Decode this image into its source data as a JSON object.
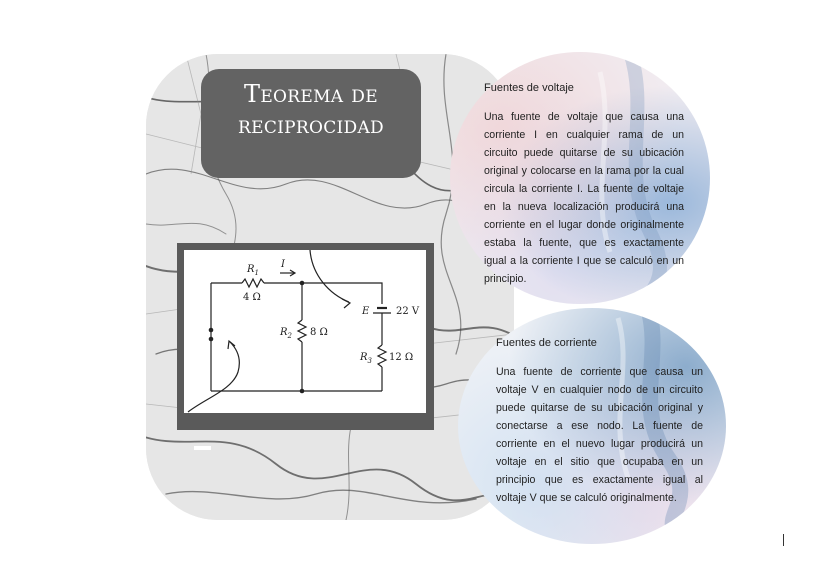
{
  "title": {
    "line1": "Teorema de",
    "line2": "reciprocidad"
  },
  "circuit": {
    "r1_label": "R",
    "r1_sub": "1",
    "r1_value": "4 Ω",
    "current_label": "I",
    "r2_label": "R",
    "r2_sub": "2",
    "r2_value": "8 Ω",
    "source_label": "E",
    "source_value": "22 V",
    "r3_label": "R",
    "r3_sub": "3",
    "r3_value": "12 Ω"
  },
  "voltage_section": {
    "heading": "Fuentes de voltaje",
    "body": "Una fuente de voltaje que causa una corriente I en cualquier rama de un circuito puede quitarse de su ubicación original y colocarse en la rama por la cual circula la corriente I. La fuente de voltaje en la nueva localización producirá una corriente en el lugar donde originalmente estaba la fuente, que es exactamente igual a la corriente I que se calculó en un principio."
  },
  "current_section": {
    "heading": "Fuentes de corriente",
    "body": "Una fuente de corriente que causa un voltaje V en cualquier nodo de un circuito puede quitarse de su ubicación original y conectarse a ese nodo. La fuente de corriente en el nuevo lugar producirá un voltaje en el sitio que ocupaba en un principio que es exactamente igual al voltaje V que se calculó originalmente."
  }
}
